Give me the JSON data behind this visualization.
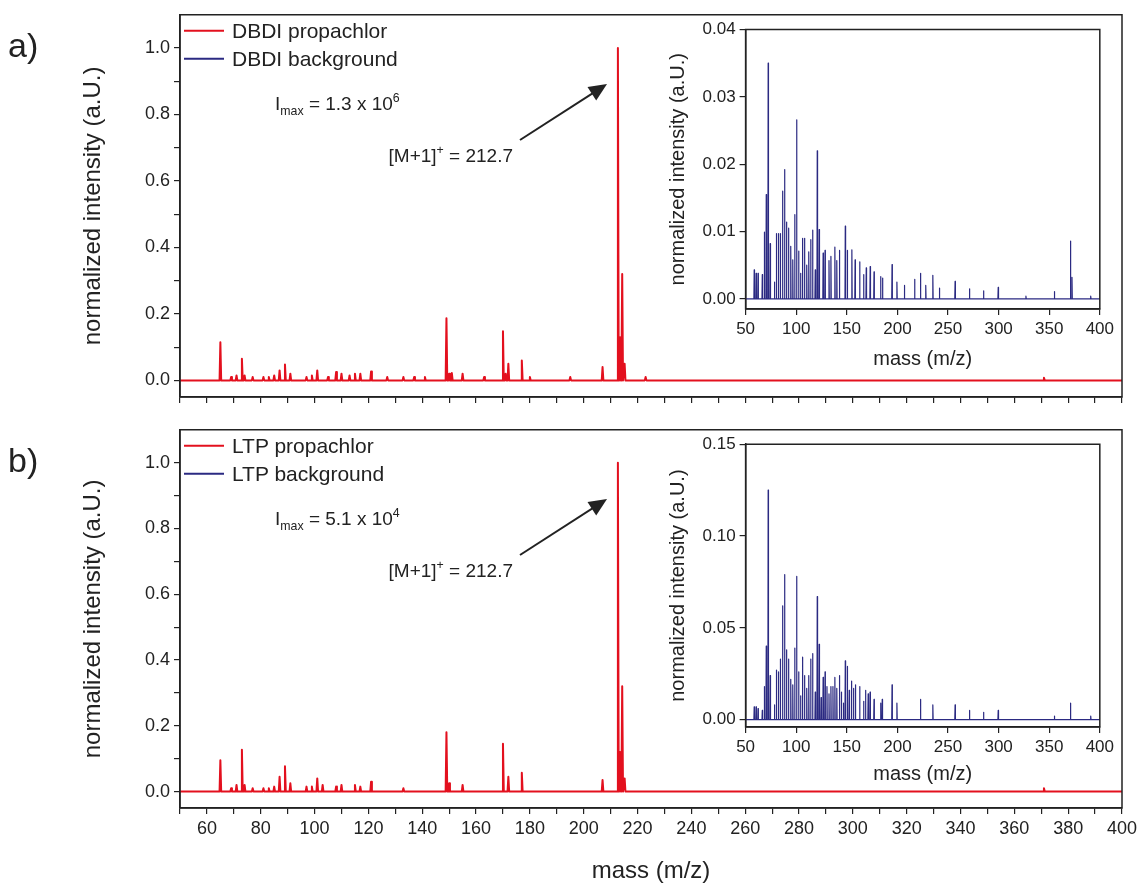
{
  "chart_data": [
    {
      "type": "line",
      "title": "a)",
      "ylabel": "normalized intensity (a.U.)",
      "xlim": [
        50,
        400
      ],
      "xticks": [
        {
          "value": 50,
          "label": null
        },
        60,
        {
          "value": 70,
          "label": null
        },
        80,
        {
          "value": 90,
          "label": null
        },
        100,
        {
          "value": 110,
          "label": null
        },
        120,
        {
          "value": 130,
          "label": null
        },
        140,
        {
          "value": 150,
          "label": null
        },
        160,
        {
          "value": 170,
          "label": null
        },
        180,
        {
          "value": 190,
          "label": null
        },
        200,
        {
          "value": 210,
          "label": null
        },
        220,
        {
          "value": 230,
          "label": null
        },
        240,
        {
          "value": 250,
          "label": null
        },
        260,
        {
          "value": 270,
          "label": null
        },
        280,
        {
          "value": 290,
          "label": null
        },
        300,
        {
          "value": 310,
          "label": null
        },
        320,
        {
          "value": 330,
          "label": null
        },
        340,
        {
          "value": 350,
          "label": null
        },
        360,
        {
          "value": 370,
          "label": null
        },
        380,
        {
          "value": 390,
          "label": null
        },
        400
      ],
      "ylim": [
        -0.05,
        1.1
      ],
      "yticks": [
        {
          "value": 0,
          "label": "0.0"
        },
        {
          "value": 0.1,
          "label": null
        },
        0.2,
        {
          "value": 0.3,
          "label": null
        },
        0.4,
        {
          "value": 0.5,
          "label": null
        },
        0.6,
        {
          "value": 0.7,
          "label": null
        },
        0.8,
        {
          "value": 0.9,
          "label": null
        },
        {
          "value": 1,
          "label": "1.0"
        }
      ],
      "tick_labels": "y",
      "legend": "top left",
      "annotations": [
        "I$_{max}$ = 1.3 x 10$^{6}$",
        "[M+1]$^{+}$ = 212.7"
      ],
      "series": [
        {
          "name": "DBDI propachlor",
          "color": "#e3101e",
          "x": [
            50,
            64.7,
            65,
            65.3,
            68.7,
            69,
            69.3,
            70.7,
            71,
            71.3,
            72.7,
            73,
            73.3,
            73.7,
            74,
            74.3,
            76.7,
            77,
            77.3,
            80.7,
            81,
            81.3,
            82.7,
            83,
            83.3,
            84.7,
            85,
            85.3,
            86.7,
            87,
            87.3,
            88.7,
            89,
            89.3,
            90.7,
            91,
            91.3,
            96.7,
            97,
            97.3,
            98.7,
            99,
            99.3,
            100.7,
            101,
            101.3,
            104.7,
            105,
            105.3,
            107.7,
            108,
            108.3,
            109.7,
            110,
            110.3,
            112.7,
            113,
            113.3,
            114.7,
            115,
            115.3,
            116.7,
            117,
            117.3,
            120.7,
            121,
            121.3,
            126.7,
            127,
            127.3,
            132.7,
            133,
            133.3,
            136.7,
            137,
            137.3,
            140.7,
            141,
            141.3,
            148.7,
            149,
            149.3,
            149.7,
            150,
            150.3,
            150.7,
            151,
            151.3,
            154.7,
            155,
            155.3,
            162.7,
            163,
            163.3,
            169.7,
            170,
            170.3,
            170.7,
            171,
            171.3,
            171.7,
            172,
            172.3,
            176.7,
            177,
            177.3,
            179.7,
            180,
            180.3,
            194.7,
            195,
            195.3,
            206.7,
            207,
            207.3,
            212.4,
            212.7,
            213,
            213.2,
            213.5,
            213.8,
            214,
            214.3,
            214.6,
            214.9,
            215.2,
            215.5,
            222.7,
            223,
            223.3,
            370.7,
            371,
            371.3,
            400
          ],
          "values": [
            0,
            0,
            0.115,
            0,
            0,
            0.01,
            0,
            0,
            0.015,
            0,
            0,
            0.065,
            0,
            0,
            0.015,
            0,
            0,
            0.01,
            0,
            0,
            0.01,
            0,
            0,
            0.01,
            0,
            0,
            0.015,
            0,
            0,
            0.03,
            0,
            0,
            0.048,
            0,
            0,
            0.02,
            0,
            0,
            0.01,
            0,
            0,
            0.015,
            0,
            0,
            0.03,
            0,
            0,
            0.01,
            0,
            0,
            0.025,
            0,
            0,
            0.02,
            0,
            0,
            0.015,
            0,
            0,
            0.02,
            0,
            0,
            0.02,
            0,
            0,
            0.027,
            0,
            0,
            0.01,
            0,
            0,
            0.01,
            0,
            0,
            0.01,
            0,
            0,
            0.01,
            0,
            0,
            0.187,
            0,
            0,
            0.02,
            0,
            0,
            0.022,
            0,
            0,
            0.02,
            0,
            0,
            0.01,
            0,
            0,
            0.148,
            0,
            0,
            0.02,
            0,
            0,
            0.05,
            0,
            0,
            0.06,
            0,
            0,
            0.01,
            0,
            0,
            0.01,
            0,
            0,
            0.04,
            0,
            0,
            1,
            0,
            0,
            0.13,
            0,
            0,
            0.32,
            0,
            0,
            0.05,
            0,
            0,
            0.01,
            0,
            0,
            0.008,
            0,
            0
          ]
        },
        {
          "name": "DBDI background",
          "color": "#2b2a82"
        }
      ]
    },
    {
      "type": "line",
      "xlabel": "mass (m/z)",
      "ylabel": "normalized intensity (a.U.)",
      "xlim": [
        50,
        400
      ],
      "xticks": [
        50,
        100,
        150,
        200,
        250,
        300,
        350,
        400
      ],
      "ylim": [
        -0.0015,
        0.04
      ],
      "yticks": [
        {
          "value": 0,
          "label": "0.00"
        },
        0.01,
        0.02,
        0.03,
        0.04
      ],
      "series": [
        {
          "color": "#2b2a82",
          "x": [
            50,
            58.2,
            58.5,
            58.8,
            60.1,
            60.4,
            60.7,
            62,
            62.3,
            62.6,
            66.2,
            66.5,
            66.8,
            68.2,
            68.5,
            68.8,
            70.1,
            70.4,
            70.7,
            72,
            72.3,
            72.6,
            74,
            74.3,
            74.6,
            78.2,
            78.5,
            78.8,
            80.1,
            80.4,
            80.7,
            82.1,
            82.4,
            82.7,
            84,
            84.3,
            84.6,
            86.2,
            86.5,
            86.8,
            88.2,
            88.5,
            88.8,
            90.1,
            90.4,
            90.7,
            92.1,
            92.4,
            92.7,
            94.3,
            94.6,
            94.9,
            96.3,
            96.6,
            96.9,
            98.2,
            98.5,
            98.8,
            100.1,
            100.4,
            100.7,
            102.1,
            102.4,
            102.7,
            104,
            104.3,
            104.6,
            105.9,
            106.2,
            106.5,
            107.9,
            108.2,
            108.5,
            110.1,
            110.4,
            110.7,
            112.1,
            112.4,
            112.7,
            114,
            114.3,
            114.6,
            115.9,
            116.2,
            116.5,
            118.5,
            118.8,
            119.1,
            120.5,
            120.8,
            121.1,
            122.4,
            122.7,
            123,
            126.3,
            126.6,
            126.9,
            128.2,
            128.5,
            128.8,
            132.1,
            132.4,
            132.7,
            134,
            134.3,
            134.6,
            137.9,
            138.2,
            138.5,
            139.8,
            140.1,
            140.4,
            142.4,
            142.7,
            143,
            148.2,
            148.5,
            148.8,
            150.2,
            150.5,
            150.8,
            154.7,
            155,
            155.3,
            157.9,
            158.2,
            158.5,
            162.4,
            162.7,
            163,
            166.3,
            166.6,
            166.9,
            168.9,
            169.2,
            169.5,
            172.8,
            173.1,
            173.4,
            176.6,
            176.9,
            177.2,
            183.1,
            183.4,
            183.7,
            185,
            185.3,
            185.6,
            194.4,
            194.7,
            195,
            199.2,
            199.5,
            199.8,
            206.6,
            206.9,
            207.2,
            216.7,
            217,
            217.3,
            222.5,
            222.8,
            223.1,
            227.7,
            228,
            228.3,
            234.7,
            235,
            235.3,
            241.2,
            241.5,
            241.8,
            256.7,
            257,
            257.3,
            270.9,
            271.2,
            271.5,
            284.8,
            285.1,
            285.4,
            299.3,
            299.6,
            299.9,
            326.7,
            327,
            327.3,
            354.8,
            355.1,
            355.4,
            370.7,
            371,
            371.3,
            372.2,
            372.5,
            372.8,
            390.7,
            391,
            391.3,
            400
          ],
          "values": [
            0,
            0,
            0.0043,
            0,
            0,
            0.0038,
            0,
            0,
            0.0038,
            0,
            0,
            0.0036,
            0,
            0,
            0.0099,
            0,
            0,
            0.0155,
            0,
            0,
            0.035,
            0,
            0,
            0.0082,
            0,
            0,
            0.0025,
            0,
            0,
            0.0097,
            0,
            0,
            0.0097,
            0,
            0,
            0.0097,
            0,
            0,
            0.016,
            0,
            0,
            0.0192,
            0,
            0,
            0.0114,
            0,
            0,
            0.0105,
            0,
            0,
            0.0078,
            0,
            0,
            0.0058,
            0,
            0,
            0.0125,
            0,
            0,
            0.0266,
            0,
            0,
            0.0071,
            0,
            0,
            0.0038,
            0,
            0,
            0.009,
            0,
            0,
            0.009,
            0,
            0,
            0.005,
            0,
            0,
            0.007,
            0,
            0,
            0.0088,
            0,
            0,
            0.0102,
            0,
            0,
            0.0043,
            0,
            0,
            0.022,
            0,
            0,
            0.0103,
            0,
            0,
            0.0068,
            0,
            0,
            0.0072,
            0,
            0,
            0.0057,
            0,
            0,
            0.0063,
            0,
            0,
            0.0077,
            0,
            0,
            0.0057,
            0,
            0,
            0.0072,
            0,
            0,
            0.0108,
            0,
            0,
            0.0072,
            0,
            0,
            0.0073,
            0,
            0,
            0.0058,
            0,
            0,
            0.0055,
            0,
            0,
            0.0036,
            0,
            0,
            0.0046,
            0,
            0,
            0.0048,
            0,
            0,
            0.004,
            0,
            0,
            0.0033,
            0,
            0,
            0.0031,
            0,
            0,
            0.0051,
            0,
            0,
            0.0025,
            0,
            0,
            0.002,
            0,
            0,
            0.0029,
            0,
            0,
            0.0038,
            0,
            0,
            0.002,
            0,
            0,
            0.0035,
            0,
            0,
            0.0016,
            0,
            0,
            0.0026,
            0,
            0,
            0.0015,
            0,
            0,
            0.0012,
            0,
            0,
            0.0017,
            0,
            0,
            0.0004,
            0,
            0,
            0.0011,
            0,
            0,
            0.0086,
            0,
            0,
            0.0032,
            0,
            0,
            0.0004,
            0,
            0
          ]
        }
      ]
    },
    {
      "type": "line",
      "title": "b)",
      "xlabel": "mass (m/z)",
      "ylabel": "normalized intensity (a.U.)",
      "xlim": [
        50,
        400
      ],
      "xticks": [
        {
          "value": 50,
          "label": null
        },
        60,
        {
          "value": 70,
          "label": null
        },
        80,
        {
          "value": 90,
          "label": null
        },
        100,
        {
          "value": 110,
          "label": null
        },
        120,
        {
          "value": 130,
          "label": null
        },
        140,
        {
          "value": 150,
          "label": null
        },
        160,
        {
          "value": 170,
          "label": null
        },
        180,
        {
          "value": 190,
          "label": null
        },
        200,
        {
          "value": 210,
          "label": null
        },
        220,
        {
          "value": 230,
          "label": null
        },
        240,
        {
          "value": 250,
          "label": null
        },
        260,
        {
          "value": 270,
          "label": null
        },
        280,
        {
          "value": 290,
          "label": null
        },
        300,
        {
          "value": 310,
          "label": null
        },
        320,
        {
          "value": 330,
          "label": null
        },
        340,
        {
          "value": 350,
          "label": null
        },
        360,
        {
          "value": 370,
          "label": null
        },
        380,
        {
          "value": 390,
          "label": null
        },
        400
      ],
      "ylim": [
        -0.05,
        1.1
      ],
      "yticks": [
        {
          "value": 0,
          "label": "0.0"
        },
        {
          "value": 0.1,
          "label": null
        },
        0.2,
        {
          "value": 0.3,
          "label": null
        },
        0.4,
        {
          "value": 0.5,
          "label": null
        },
        0.6,
        {
          "value": 0.7,
          "label": null
        },
        0.8,
        {
          "value": 0.9,
          "label": null
        },
        {
          "value": 1,
          "label": "1.0"
        }
      ],
      "legend": "top left",
      "annotations": [
        "I$_{max}$ = 5.1 x 10$^{4}$",
        "[M+1]$^{+}$ = 212.7"
      ],
      "series": [
        {
          "name": "LTP propachlor",
          "color": "#e3101e",
          "x": [
            50,
            64.7,
            65,
            65.3,
            68.7,
            69,
            69.3,
            70.7,
            71,
            71.3,
            72.7,
            73,
            73.3,
            73.7,
            74,
            74.3,
            76.7,
            77,
            77.3,
            80.7,
            81,
            81.3,
            82.7,
            83,
            83.3,
            84.7,
            85,
            85.3,
            86.7,
            87,
            87.3,
            88.7,
            89,
            89.3,
            90.7,
            91,
            91.3,
            96.7,
            97,
            97.3,
            98.7,
            99,
            99.3,
            100.7,
            101,
            101.3,
            102.7,
            103,
            103.3,
            107.7,
            108,
            108.3,
            109.7,
            110,
            110.3,
            114.7,
            115,
            115.3,
            116.7,
            117,
            117.3,
            120.7,
            121,
            121.3,
            132.7,
            133,
            133.3,
            148.7,
            149,
            149.3,
            149.7,
            150,
            150.3,
            154.7,
            155,
            155.3,
            169.7,
            170,
            170.3,
            171.7,
            172,
            172.3,
            176.7,
            177,
            177.3,
            206.7,
            207,
            207.3,
            212.4,
            212.7,
            213,
            213.2,
            213.5,
            213.8,
            214,
            214.3,
            214.6,
            214.9,
            215.2,
            215.5,
            370.7,
            371,
            371.3,
            400
          ],
          "values": [
            0,
            0,
            0.095,
            0,
            0,
            0.01,
            0,
            0,
            0.02,
            0,
            0,
            0.127,
            0,
            0,
            0.02,
            0,
            0,
            0.01,
            0,
            0,
            0.01,
            0,
            0,
            0.01,
            0,
            0,
            0.015,
            0,
            0,
            0.045,
            0,
            0,
            0.077,
            0,
            0,
            0.025,
            0,
            0,
            0.015,
            0,
            0,
            0.015,
            0,
            0,
            0.04,
            0,
            0,
            0.02,
            0,
            0,
            0.015,
            0,
            0,
            0.02,
            0,
            0,
            0.02,
            0,
            0,
            0.015,
            0,
            0,
            0.03,
            0,
            0,
            0.01,
            0,
            0,
            0.18,
            0,
            0,
            0.025,
            0,
            0,
            0.02,
            0,
            0,
            0.145,
            0,
            0,
            0.045,
            0,
            0,
            0.057,
            0,
            0,
            0.035,
            0,
            0,
            1,
            0,
            0,
            0.12,
            0,
            0,
            0.32,
            0,
            0,
            0.04,
            0,
            0,
            0.01,
            0,
            0
          ]
        },
        {
          "name": "LTP background",
          "color": "#2b2a82"
        }
      ]
    },
    {
      "type": "line",
      "xlabel": "mass (m/z)",
      "ylabel": "normalized intensity (a.U.)",
      "xlim": [
        50,
        400
      ],
      "xticks": [
        50,
        100,
        150,
        200,
        250,
        300,
        350,
        400
      ],
      "ylim": [
        -0.004,
        0.15
      ],
      "yticks": [
        {
          "value": 0,
          "label": "0.00"
        },
        0.05,
        {
          "value": 0.1,
          "label": "0.10"
        },
        0.15
      ],
      "series": [
        {
          "color": "#2b2a82",
          "x": [
            50,
            58.2,
            58.5,
            58.8,
            60.1,
            60.4,
            60.7,
            62,
            62.3,
            62.6,
            66.2,
            66.5,
            66.8,
            68.2,
            68.5,
            68.8,
            70.1,
            70.4,
            70.7,
            72,
            72.3,
            72.6,
            74,
            74.3,
            74.6,
            78.2,
            78.5,
            78.8,
            80.1,
            80.4,
            80.7,
            82.1,
            82.4,
            82.7,
            84,
            84.3,
            84.6,
            86.2,
            86.5,
            86.8,
            88.2,
            88.5,
            88.8,
            90.1,
            90.4,
            90.7,
            92.1,
            92.4,
            92.7,
            94.3,
            94.6,
            94.9,
            96.3,
            96.6,
            96.9,
            98.2,
            98.5,
            98.8,
            100.1,
            100.4,
            100.7,
            102.1,
            102.4,
            102.7,
            104,
            104.3,
            104.6,
            105.9,
            106.2,
            106.5,
            107.9,
            108.2,
            108.5,
            110.1,
            110.4,
            110.7,
            112.1,
            112.4,
            112.7,
            114,
            114.3,
            114.6,
            115.9,
            116.2,
            116.5,
            118.5,
            118.8,
            119.1,
            120.5,
            120.8,
            121.1,
            122.4,
            122.7,
            123,
            124.3,
            124.6,
            124.9,
            126.3,
            126.6,
            126.9,
            128.2,
            128.5,
            128.8,
            130.1,
            130.4,
            130.7,
            132.1,
            132.4,
            132.7,
            134,
            134.3,
            134.6,
            136,
            136.3,
            136.6,
            137.9,
            138.2,
            138.5,
            139.8,
            140.1,
            140.4,
            142.4,
            142.7,
            143,
            144.3,
            144.6,
            144.9,
            146.3,
            146.6,
            146.9,
            148.2,
            148.5,
            148.8,
            150.2,
            150.5,
            150.8,
            152.1,
            152.4,
            152.7,
            154.3,
            154.6,
            154.9,
            156.3,
            156.6,
            156.9,
            158.2,
            158.5,
            158.8,
            162.4,
            162.7,
            163,
            166.3,
            166.6,
            166.9,
            168.2,
            168.5,
            168.8,
            170.8,
            171.1,
            171.4,
            172.7,
            173,
            173.3,
            176.6,
            176.9,
            177.2,
            183.1,
            183.4,
            183.7,
            184.7,
            185,
            185.3,
            194.4,
            194.7,
            195,
            199.2,
            199.5,
            199.8,
            222.5,
            222.8,
            223.1,
            234.7,
            235,
            235.3,
            256.7,
            257,
            257.3,
            270.9,
            271.2,
            271.5,
            284.8,
            285.1,
            285.4,
            299.3,
            299.6,
            299.9,
            354.8,
            355.1,
            355.4,
            370.7,
            371,
            371.3,
            390.7,
            391,
            391.3,
            400
          ],
          "values": [
            0,
            0,
            0.007,
            0,
            0,
            0.007,
            0,
            0,
            0.006,
            0,
            0,
            0.005,
            0,
            0,
            0.018,
            0,
            0,
            0.04,
            0,
            0,
            0.125,
            0,
            0,
            0.024,
            0,
            0,
            0.008,
            0,
            0,
            0.027,
            0,
            0,
            0.026,
            0,
            0,
            0.033,
            0,
            0,
            0.062,
            0,
            0,
            0.079,
            0,
            0,
            0.038,
            0,
            0,
            0.033,
            0,
            0,
            0.022,
            0,
            0,
            0.019,
            0,
            0,
            0.039,
            0,
            0,
            0.078,
            0,
            0,
            0.026,
            0,
            0,
            0.013,
            0,
            0,
            0.034,
            0,
            0,
            0.024,
            0,
            0,
            0.017,
            0,
            0,
            0.024,
            0,
            0,
            0.033,
            0,
            0,
            0.036,
            0,
            0,
            0.015,
            0,
            0,
            0.067,
            0,
            0,
            0.041,
            0,
            0,
            0.012,
            0,
            0,
            0.023,
            0,
            0,
            0.026,
            0,
            0,
            0.018,
            0,
            0,
            0.014,
            0,
            0,
            0.018,
            0,
            0,
            0.018,
            0,
            0,
            0.023,
            0,
            0,
            0.017,
            0,
            0,
            0.024,
            0,
            0,
            0.015,
            0,
            0,
            0.009,
            0,
            0,
            0.032,
            0,
            0,
            0.029,
            0,
            0,
            0.016,
            0,
            0,
            0.021,
            0,
            0,
            0.017,
            0,
            0,
            0.019,
            0,
            0,
            0.018,
            0,
            0,
            0.01,
            0,
            0,
            0.016,
            0,
            0,
            0.014,
            0,
            0,
            0.015,
            0,
            0,
            0.011,
            0,
            0,
            0.009,
            0,
            0,
            0.011,
            0,
            0,
            0.019,
            0,
            0,
            0.009,
            0,
            0,
            0.011,
            0,
            0,
            0.008,
            0,
            0,
            0.008,
            0,
            0,
            0.005,
            0,
            0,
            0.004,
            0,
            0,
            0.005,
            0,
            0,
            0.002,
            0,
            0,
            0.009,
            0,
            0,
            0.002,
            0,
            0
          ]
        }
      ]
    }
  ]
}
